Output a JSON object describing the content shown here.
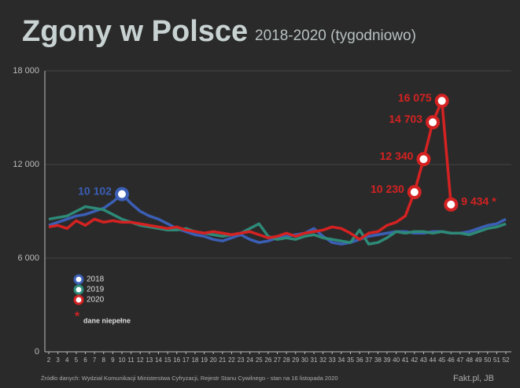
{
  "chart_data": {
    "type": "line",
    "title": "Zgony w Polsce",
    "subtitle": "2018-2020 (tygodniowo)",
    "x": [
      2,
      3,
      4,
      5,
      6,
      7,
      8,
      9,
      10,
      11,
      12,
      13,
      14,
      15,
      16,
      17,
      18,
      19,
      20,
      21,
      22,
      23,
      24,
      25,
      26,
      27,
      28,
      29,
      30,
      31,
      32,
      33,
      34,
      35,
      36,
      37,
      38,
      39,
      40,
      41,
      42,
      43,
      44,
      45,
      46,
      47,
      48,
      49,
      50,
      51,
      52
    ],
    "xlim": [
      1.57,
      52.6
    ],
    "xticks": [
      2,
      3,
      4,
      5,
      6,
      7,
      8,
      9,
      10,
      11,
      12,
      13,
      14,
      15,
      16,
      17,
      18,
      19,
      20,
      21,
      22,
      23,
      24,
      25,
      26,
      27,
      28,
      29,
      30,
      31,
      32,
      33,
      34,
      35,
      36,
      37,
      38,
      39,
      40,
      41,
      42,
      43,
      44,
      45,
      46,
      47,
      48,
      49,
      50,
      51,
      52
    ],
    "ylim": [
      0,
      18000
    ],
    "yticks": [
      0,
      {
        "value": 6000,
        "label": "6 000"
      },
      {
        "value": 12000,
        "label": "12 000"
      },
      {
        "value": 18000,
        "label": "18 000"
      }
    ],
    "grid": true,
    "legend": "lower left",
    "series": [
      {
        "name": "2018",
        "color": "#3b5fb5",
        "values": [
          8100,
          8300,
          8500,
          8700,
          8800,
          9000,
          9200,
          9600,
          10102,
          9500,
          9000,
          8700,
          8500,
          8200,
          7900,
          7700,
          7500,
          7400,
          7200,
          7100,
          7300,
          7500,
          7200,
          7000,
          7100,
          7300,
          7400,
          7500,
          7600,
          7900,
          7400,
          7000,
          6900,
          7000,
          7200,
          7400,
          7500,
          7600,
          7700,
          7700,
          7600,
          7600,
          7700,
          7700,
          7600,
          7600,
          7700,
          7900,
          8100,
          8200,
          8500
        ],
        "value_labels": [
          null,
          null,
          null,
          null,
          null,
          null,
          null,
          null,
          "10 102",
          null,
          null,
          null,
          null,
          null,
          null,
          null,
          null,
          null,
          null,
          null,
          null,
          null,
          null,
          null,
          null,
          null,
          null,
          null,
          null,
          null,
          null,
          null,
          null,
          null,
          null,
          null,
          null,
          null,
          null,
          null,
          null,
          null,
          null,
          null,
          null,
          null,
          null,
          null,
          null,
          null,
          null
        ]
      },
      {
        "name": "2019",
        "color": "#2e8a78",
        "values": [
          8500,
          8600,
          8700,
          9000,
          9300,
          9200,
          9100,
          8800,
          8500,
          8300,
          8100,
          8000,
          7900,
          7800,
          7800,
          7900,
          7700,
          7600,
          7500,
          7400,
          7500,
          7600,
          7900,
          8200,
          7400,
          7200,
          7300,
          7200,
          7400,
          7500,
          7300,
          7200,
          7100,
          7000,
          7800,
          6900,
          7000,
          7300,
          7700,
          7600,
          7700,
          7700,
          7600,
          7700,
          7600,
          7600,
          7500,
          7700,
          7900,
          8000,
          8200
        ]
      },
      {
        "name": "2020",
        "color": "#d42222",
        "values": [
          8000,
          8100,
          7900,
          8400,
          8100,
          8500,
          8300,
          8400,
          8300,
          8300,
          8200,
          8100,
          8000,
          7900,
          8000,
          7800,
          7700,
          7600,
          7700,
          7600,
          7500,
          7600,
          7700,
          7500,
          7300,
          7400,
          7600,
          7400,
          7600,
          7700,
          7800,
          8000,
          7900,
          7600,
          7200,
          7600,
          7700,
          8100,
          8300,
          8700,
          10230,
          12340,
          14703,
          16075,
          9434,
          null,
          null,
          null,
          null,
          null,
          null
        ],
        "value_labels": [
          null,
          null,
          null,
          null,
          null,
          null,
          null,
          null,
          null,
          null,
          null,
          null,
          null,
          null,
          null,
          null,
          null,
          null,
          null,
          null,
          null,
          null,
          null,
          null,
          null,
          null,
          null,
          null,
          null,
          null,
          null,
          null,
          null,
          null,
          null,
          null,
          null,
          null,
          null,
          null,
          "10 230",
          "12 340",
          "14 703",
          "16 075",
          "9 434 *",
          null,
          null,
          null,
          null,
          null,
          null
        ]
      }
    ],
    "note_marker": "*",
    "note": "dane niepełne",
    "source": "Źródło danych: Wydział Komunikacji Ministerstwa Cyfryzacji, Rejestr Stanu Cywilnego - stan na 16 listopada 2020",
    "credit": "Fakt.pl, JB"
  }
}
